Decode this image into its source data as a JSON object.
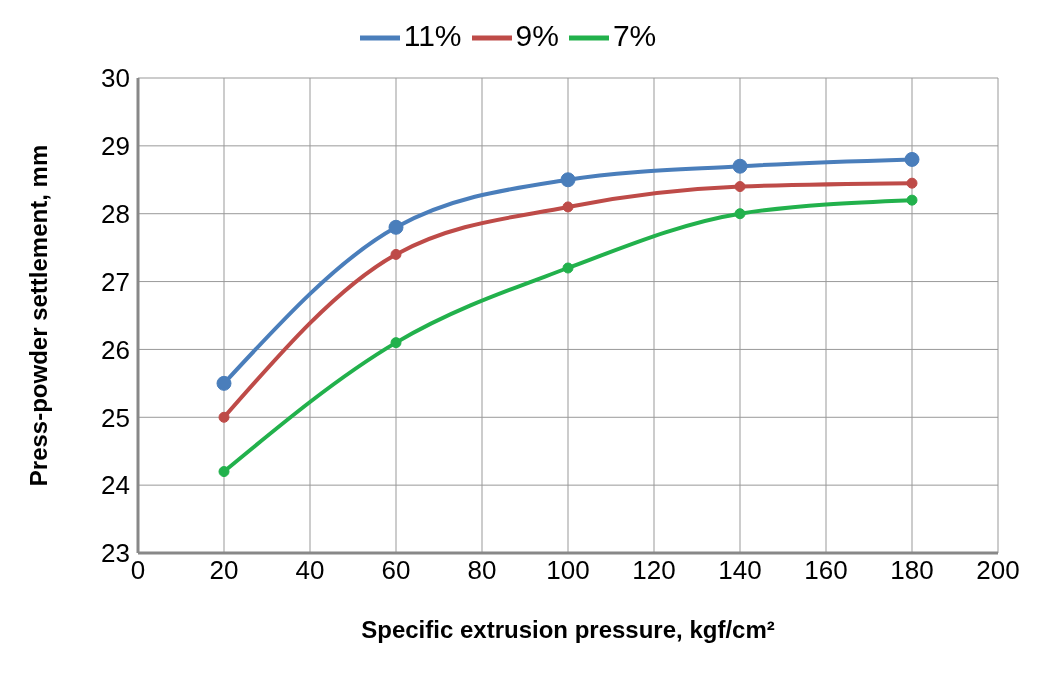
{
  "chart_data": {
    "type": "line",
    "xlabel": "Specific extrusion pressure, kgf/cm²",
    "ylabel": "Press-powder settlement, mm",
    "x": [
      20,
      60,
      100,
      140,
      180
    ],
    "series": [
      {
        "name": "11%",
        "color": "#4a7ebb",
        "values": [
          25.5,
          27.8,
          28.5,
          28.7,
          28.8
        ]
      },
      {
        "name": "9%",
        "color": "#be4b48",
        "values": [
          25.0,
          27.4,
          28.1,
          28.4,
          28.45
        ]
      },
      {
        "name": "7%",
        "color": "#22b14c",
        "values": [
          24.2,
          26.1,
          27.2,
          28.0,
          28.2
        ]
      }
    ],
    "xlim": [
      0,
      200
    ],
    "xticks": [
      0,
      20,
      40,
      60,
      80,
      100,
      120,
      140,
      160,
      180,
      200
    ],
    "ylim": [
      23,
      30
    ],
    "yticks": [
      23,
      24,
      25,
      26,
      27,
      28,
      29,
      30
    ],
    "grid": true,
    "legend": "top",
    "marker": "circle",
    "line_style": "solid"
  }
}
